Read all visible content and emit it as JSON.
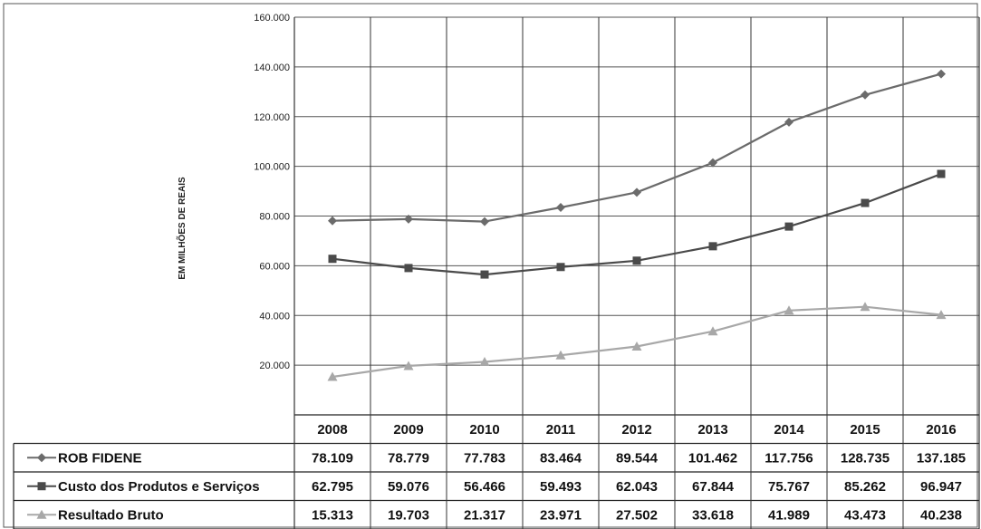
{
  "chart_data": {
    "type": "line",
    "title": "",
    "ylabel": "EM MILHÕES DE REAIS",
    "ylim": [
      0,
      160000
    ],
    "yticks": [
      20000,
      40000,
      60000,
      80000,
      100000,
      120000,
      140000,
      160000
    ],
    "ytick_labels": [
      "20.000",
      "40.000",
      "60.000",
      "80.000",
      "100.000",
      "120.000",
      "140.000",
      "160.000"
    ],
    "grid": true,
    "legend_placement": "table-below",
    "categories": [
      "2008",
      "2009",
      "2010",
      "2011",
      "2012",
      "2013",
      "2014",
      "2015",
      "2016"
    ],
    "series": [
      {
        "name": "ROB FIDENE",
        "color": "#6b6b6b",
        "marker": "diamond",
        "values": [
          78109,
          78779,
          77783,
          83464,
          89544,
          101462,
          117756,
          128735,
          137185
        ],
        "labels": [
          "78.109",
          "78.779",
          "77.783",
          "83.464",
          "89.544",
          "101.462",
          "117.756",
          "128.735",
          "137.185"
        ]
      },
      {
        "name": "Custo dos Produtos e Serviços",
        "color": "#4a4a4a",
        "marker": "square",
        "values": [
          62795,
          59076,
          56466,
          59493,
          62043,
          67844,
          75767,
          85262,
          96947
        ],
        "labels": [
          "62.795",
          "59.076",
          "56.466",
          "59.493",
          "62.043",
          "67.844",
          "75.767",
          "85.262",
          "96.947"
        ]
      },
      {
        "name": "Resultado Bruto",
        "color": "#a8a8a8",
        "marker": "triangle",
        "values": [
          15313,
          19703,
          21317,
          23971,
          27502,
          33618,
          41989,
          43473,
          40238
        ],
        "labels": [
          "15.313",
          "19.703",
          "21.317",
          "23.971",
          "27.502",
          "33.618",
          "41.989",
          "43.473",
          "40.238"
        ]
      }
    ]
  }
}
